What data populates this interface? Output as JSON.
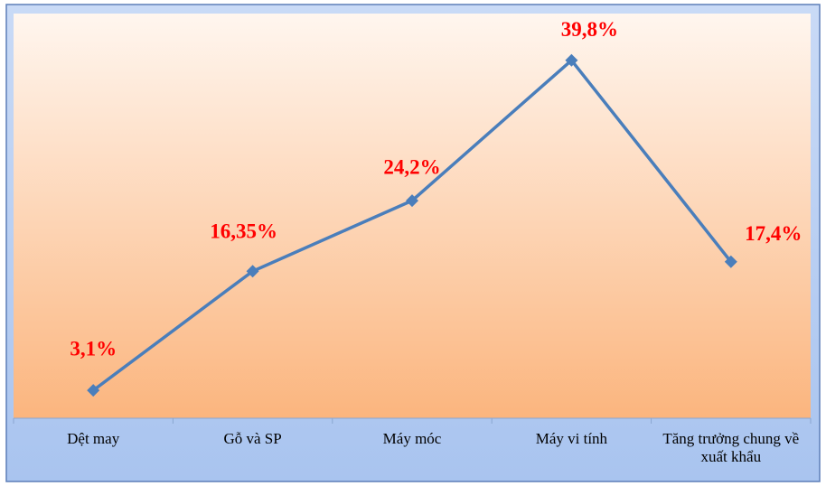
{
  "chart_data": {
    "type": "line",
    "categories": [
      "Dệt may",
      "Gỗ và SP",
      "Máy móc",
      "Máy vi tính",
      "Tăng trưởng chung về xuất khẩu"
    ],
    "series": [
      {
        "color": "#4a7ebb",
        "values": [
          3.1,
          16.35,
          24.2,
          39.8,
          17.4
        ],
        "value_labels": [
          "3,1%",
          "16,35%",
          "24,2%",
          "39,8%",
          "17,4%"
        ]
      }
    ],
    "value_label_color": "#ff0000",
    "ylim": [
      0,
      45
    ]
  }
}
